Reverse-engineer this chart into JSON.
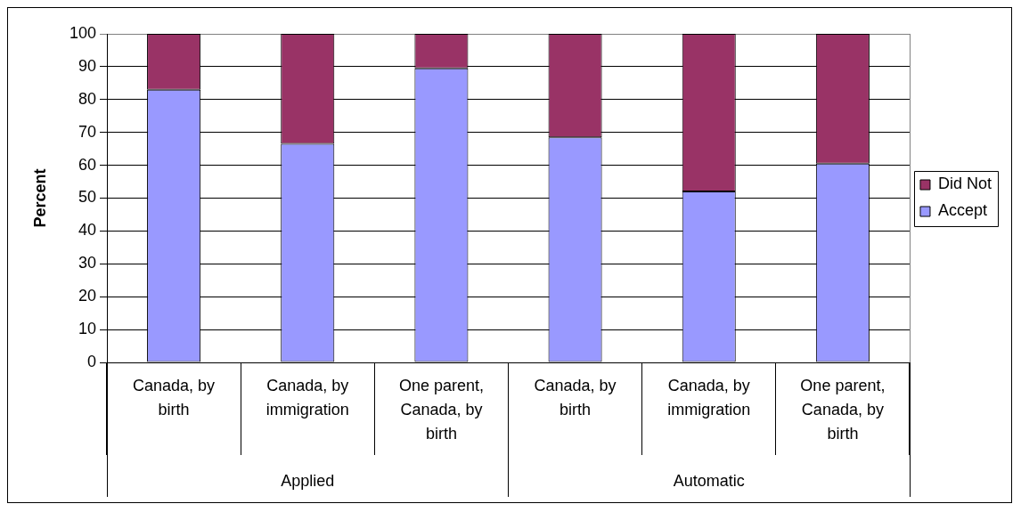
{
  "chart_data": {
    "type": "bar",
    "categories": [
      "Canada, by birth",
      "Canada, by immigration",
      "One parent, Canada, by birth",
      "Canada, by birth",
      "Canada, by immigration",
      "One parent, Canada, by birth"
    ],
    "series": [
      {
        "name": "Accept",
        "color": "#9999ff",
        "values": [
          83,
          66.5,
          89.5,
          68.5,
          52,
          60.5
        ]
      },
      {
        "name": "Did Not",
        "color": "#993366",
        "values": [
          17,
          33.5,
          10.5,
          31.5,
          48,
          39.5
        ]
      }
    ],
    "stacked": true,
    "ylim": [
      0,
      100
    ],
    "yticks": [
      0,
      10,
      20,
      30,
      40,
      50,
      60,
      70,
      80,
      90,
      100
    ],
    "ylabel": "Percent",
    "grid": "y",
    "legend": "right",
    "annotations": [
      "Applied",
      "Automatic"
    ]
  }
}
